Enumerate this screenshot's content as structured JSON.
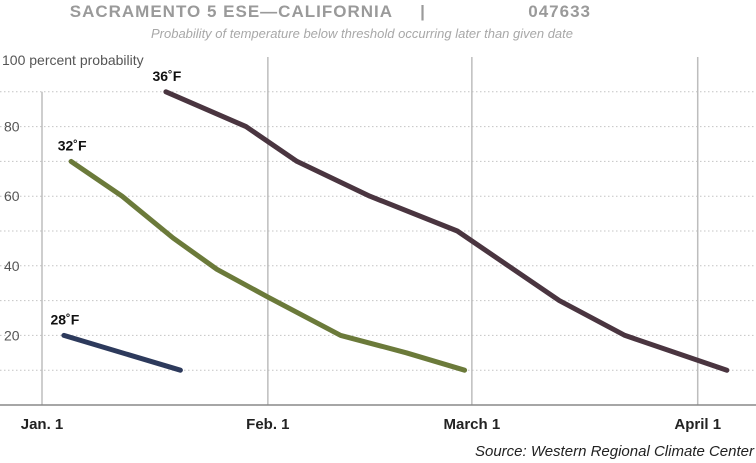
{
  "chart_data": {
    "type": "line",
    "title": "SACRAMENTO 5 ESE—CALIFORNIA",
    "station_id": "047633",
    "title_separator": "|",
    "subtitle": "Probability of temperature below threshold occurring later than given date",
    "ylabel": "100 percent probability",
    "xlabel": "",
    "source": "Source: Western Regional Climate Center",
    "ylim": [
      0,
      100
    ],
    "yticks": [
      20,
      40,
      60,
      80
    ],
    "xlim": [
      "Jan. 1",
      "April 9"
    ],
    "xticks": [
      {
        "label": "Jan. 1",
        "x": "Jan. 1"
      },
      {
        "label": "Feb. 1",
        "x": "Feb. 1"
      },
      {
        "label": "March 1",
        "x": "March 1"
      },
      {
        "label": "April 1",
        "x": "April 1"
      }
    ],
    "grid": true,
    "series": [
      {
        "name": "28˚F",
        "color": "#2d3a5c",
        "x": [
          "Jan. 4",
          "Jan. 20"
        ],
        "values": [
          20,
          10
        ]
      },
      {
        "name": "32˚F",
        "color": "#6b7a3a",
        "x": [
          "Jan. 5",
          "Jan. 12",
          "Jan. 19",
          "Jan. 25",
          "Feb. 1",
          "Feb. 11",
          "Feb. 20",
          "Feb. 28"
        ],
        "values": [
          70,
          60,
          48,
          39,
          31,
          20,
          15,
          10
        ]
      },
      {
        "name": "36˚F",
        "color": "#4a3540",
        "x": [
          "Jan. 18",
          "Jan. 29",
          "Feb. 5",
          "Feb. 15",
          "Feb. 27",
          "March 6",
          "March 13",
          "March 22",
          "April 5"
        ],
        "values": [
          90,
          80,
          70,
          60,
          50,
          40,
          30,
          20,
          10
        ]
      }
    ]
  }
}
